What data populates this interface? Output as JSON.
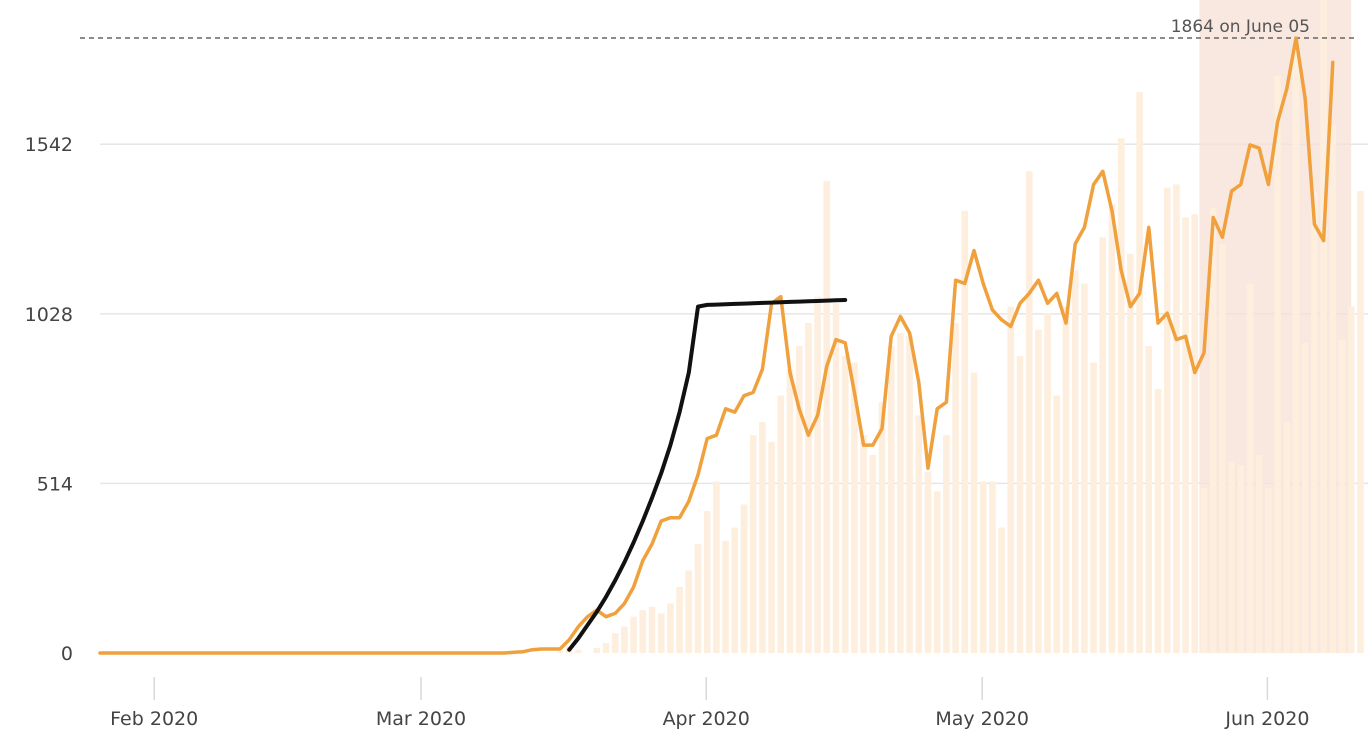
{
  "chart_data": {
    "type": "bar",
    "title": "",
    "xlabel": "",
    "ylabel": "",
    "ylim": [
      0,
      1864
    ],
    "x_start": "2020-01-26",
    "y_ticks": [
      {
        "value": 0,
        "label": "0"
      },
      {
        "value": 514,
        "label": "514"
      },
      {
        "value": 1028,
        "label": "1028"
      },
      {
        "value": 1542,
        "label": "1542"
      }
    ],
    "x_ticks": [
      {
        "date": "2020-02-01",
        "label": "Feb 2020"
      },
      {
        "date": "2020-03-01",
        "label": "Mar 2020"
      },
      {
        "date": "2020-04-01",
        "label": "Apr 2020"
      },
      {
        "date": "2020-05-01",
        "label": "May 2020"
      },
      {
        "date": "2020-06-01",
        "label": "Jun 2020"
      }
    ],
    "max_annotation": {
      "value": 1864,
      "date": "2020-06-05",
      "text": "1864 on June 05"
    },
    "highlight_band": {
      "from": "2020-05-25",
      "to": "2020-06-08",
      "color": "#f6e0d6"
    },
    "colors": {
      "daily_bars": "#fdeedd",
      "moving_average": "#f0a03c",
      "trend_fit": "#111111",
      "grid": "#e6e6e6",
      "max_line": "#666666"
    },
    "series": [
      {
        "type": "bar",
        "values": [
          0,
          0,
          0,
          0,
          0,
          0,
          0,
          0,
          0,
          0,
          0,
          0,
          0,
          0,
          0,
          0,
          0,
          0,
          0,
          0,
          0,
          0,
          0,
          0,
          0,
          0,
          0,
          0,
          0,
          0,
          0,
          0,
          0,
          0,
          0,
          0,
          0,
          0,
          0,
          0,
          0,
          0,
          0,
          0,
          0,
          0,
          0,
          0,
          0,
          0,
          5,
          20,
          10,
          0,
          15,
          30,
          60,
          80,
          110,
          130,
          140,
          120,
          150,
          200,
          250,
          330,
          430,
          520,
          340,
          380,
          450,
          660,
          700,
          640,
          780,
          860,
          930,
          1000,
          1080,
          1430,
          1060,
          900,
          880,
          660,
          600,
          760,
          930,
          970,
          960,
          720,
          550,
          490,
          660,
          1000,
          1340,
          850,
          520,
          520,
          380,
          1050,
          900,
          1460,
          980,
          1030,
          780,
          1050,
          1160,
          1120,
          880,
          1260,
          1360,
          1560,
          1210,
          1700,
          930,
          800,
          1410,
          1420,
          1320,
          1330,
          500,
          1350,
          1240,
          580,
          570,
          1120,
          600,
          500,
          1750,
          700,
          1850,
          940,
          1400,
          2000,
          1600,
          950,
          1050,
          1400
        ]
      },
      {
        "type": "line",
        "values": [
          0,
          0,
          0,
          0,
          0,
          0,
          0,
          0,
          0,
          0,
          0,
          0,
          0,
          0,
          0,
          0,
          0,
          0,
          0,
          0,
          0,
          0,
          0,
          0,
          0,
          0,
          0,
          0,
          0,
          0,
          0,
          0,
          0,
          0,
          0,
          0,
          0,
          0,
          0,
          0,
          0,
          0,
          0,
          0,
          0,
          2,
          4,
          10,
          12,
          12,
          12,
          40,
          80,
          110,
          130,
          110,
          120,
          150,
          200,
          280,
          330,
          400,
          410,
          410,
          460,
          540,
          650,
          660,
          740,
          730,
          780,
          790,
          860,
          1060,
          1080,
          850,
          740,
          660,
          720,
          870,
          950,
          940,
          790,
          630,
          630,
          680,
          960,
          1020,
          970,
          820,
          560,
          740,
          760,
          1130,
          1120,
          1220,
          1120,
          1040,
          1010,
          990,
          1060,
          1090,
          1130,
          1060,
          1090,
          1000,
          1240,
          1290,
          1420,
          1460,
          1340,
          1160,
          1050,
          1090,
          1290,
          1000,
          1030,
          950,
          960,
          850,
          910,
          1320,
          1260,
          1400,
          1420,
          1540,
          1530,
          1420,
          1610,
          1710,
          1864,
          1680,
          1300,
          1250,
          1790
        ]
      },
      {
        "type": "line",
        "values": [
          10,
          45,
          85,
          125,
          170,
          220,
          275,
          335,
          400,
          470,
          545,
          630,
          730,
          850,
          1050,
          1055,
          1056,
          1057,
          1058,
          1059,
          1060,
          1061,
          1062,
          1063,
          1064,
          1065,
          1066,
          1067,
          1068,
          1069,
          1070
        ],
        "start_offset": 51,
        "end_offset": 81
      }
    ]
  }
}
